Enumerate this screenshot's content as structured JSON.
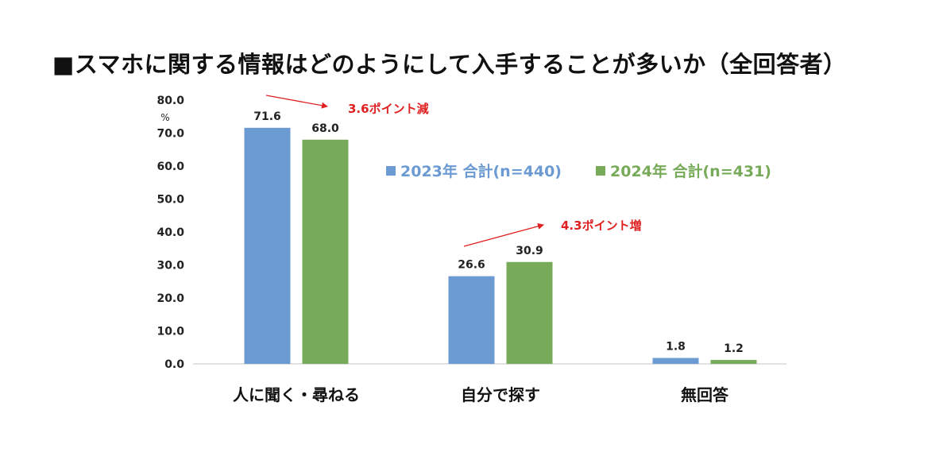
{
  "title": "■スマホに関する情報はどのようにして入手することが多いか（全回答者）",
  "colors": {
    "series_2023": "#6b9bd2",
    "series_2024": "#77ab59",
    "annotation": "#e02020",
    "axis_line": "#d9d9d9"
  },
  "chart_data": {
    "type": "bar",
    "title": "■スマホに関する情報はどのようにして入手することが多いか（全回答者）",
    "ylabel": "%",
    "ylim": [
      0,
      80
    ],
    "yticks": [
      "0.0",
      "10.0",
      "20.0",
      "30.0",
      "40.0",
      "50.0",
      "60.0",
      "70.0",
      "80.0"
    ],
    "grid": false,
    "legend_position": "top-right",
    "categories": [
      "人に聞く・尋ねる",
      "自分で探す",
      "無回答"
    ],
    "series": [
      {
        "name": "2023年 合計(n=440)",
        "values": [
          71.6,
          26.6,
          1.8
        ],
        "labels": [
          "71.6",
          "26.6",
          "1.8"
        ]
      },
      {
        "name": "2024年 合計(n=431)",
        "values": [
          68.0,
          30.9,
          1.2
        ],
        "labels": [
          "68.0",
          "30.9",
          "1.2"
        ]
      }
    ],
    "annotations": [
      {
        "text": "3.6ポイント減",
        "category": "人に聞く・尋ねる"
      },
      {
        "text": "4.3ポイント増",
        "category": "自分で探す"
      }
    ]
  }
}
